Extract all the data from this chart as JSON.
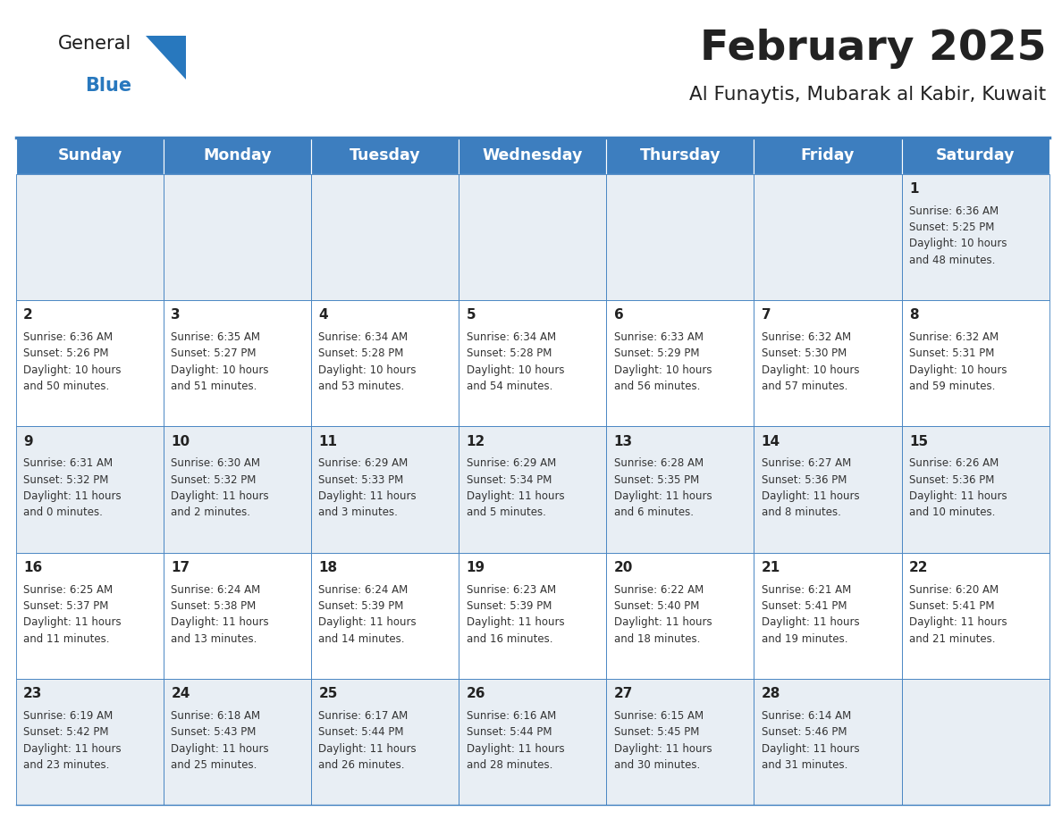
{
  "title": "February 2025",
  "subtitle": "Al Funaytis, Mubarak al Kabir, Kuwait",
  "header_bg": "#3d7ebf",
  "header_text_color": "#ffffff",
  "cell_bg_light": "#e8eef4",
  "cell_bg_white": "#ffffff",
  "border_color": "#3d7ebf",
  "border_color_thin": "#aac4de",
  "day_headers": [
    "Sunday",
    "Monday",
    "Tuesday",
    "Wednesday",
    "Thursday",
    "Friday",
    "Saturday"
  ],
  "days_data": [
    {
      "day": 1,
      "col": 6,
      "row": 0,
      "sunrise": "6:36 AM",
      "sunset": "5:25 PM",
      "daylight_a": "Daylight: 10 hours",
      "daylight_b": "and 48 minutes."
    },
    {
      "day": 2,
      "col": 0,
      "row": 1,
      "sunrise": "6:36 AM",
      "sunset": "5:26 PM",
      "daylight_a": "Daylight: 10 hours",
      "daylight_b": "and 50 minutes."
    },
    {
      "day": 3,
      "col": 1,
      "row": 1,
      "sunrise": "6:35 AM",
      "sunset": "5:27 PM",
      "daylight_a": "Daylight: 10 hours",
      "daylight_b": "and 51 minutes."
    },
    {
      "day": 4,
      "col": 2,
      "row": 1,
      "sunrise": "6:34 AM",
      "sunset": "5:28 PM",
      "daylight_a": "Daylight: 10 hours",
      "daylight_b": "and 53 minutes."
    },
    {
      "day": 5,
      "col": 3,
      "row": 1,
      "sunrise": "6:34 AM",
      "sunset": "5:28 PM",
      "daylight_a": "Daylight: 10 hours",
      "daylight_b": "and 54 minutes."
    },
    {
      "day": 6,
      "col": 4,
      "row": 1,
      "sunrise": "6:33 AM",
      "sunset": "5:29 PM",
      "daylight_a": "Daylight: 10 hours",
      "daylight_b": "and 56 minutes."
    },
    {
      "day": 7,
      "col": 5,
      "row": 1,
      "sunrise": "6:32 AM",
      "sunset": "5:30 PM",
      "daylight_a": "Daylight: 10 hours",
      "daylight_b": "and 57 minutes."
    },
    {
      "day": 8,
      "col": 6,
      "row": 1,
      "sunrise": "6:32 AM",
      "sunset": "5:31 PM",
      "daylight_a": "Daylight: 10 hours",
      "daylight_b": "and 59 minutes."
    },
    {
      "day": 9,
      "col": 0,
      "row": 2,
      "sunrise": "6:31 AM",
      "sunset": "5:32 PM",
      "daylight_a": "Daylight: 11 hours",
      "daylight_b": "and 0 minutes."
    },
    {
      "day": 10,
      "col": 1,
      "row": 2,
      "sunrise": "6:30 AM",
      "sunset": "5:32 PM",
      "daylight_a": "Daylight: 11 hours",
      "daylight_b": "and 2 minutes."
    },
    {
      "day": 11,
      "col": 2,
      "row": 2,
      "sunrise": "6:29 AM",
      "sunset": "5:33 PM",
      "daylight_a": "Daylight: 11 hours",
      "daylight_b": "and 3 minutes."
    },
    {
      "day": 12,
      "col": 3,
      "row": 2,
      "sunrise": "6:29 AM",
      "sunset": "5:34 PM",
      "daylight_a": "Daylight: 11 hours",
      "daylight_b": "and 5 minutes."
    },
    {
      "day": 13,
      "col": 4,
      "row": 2,
      "sunrise": "6:28 AM",
      "sunset": "5:35 PM",
      "daylight_a": "Daylight: 11 hours",
      "daylight_b": "and 6 minutes."
    },
    {
      "day": 14,
      "col": 5,
      "row": 2,
      "sunrise": "6:27 AM",
      "sunset": "5:36 PM",
      "daylight_a": "Daylight: 11 hours",
      "daylight_b": "and 8 minutes."
    },
    {
      "day": 15,
      "col": 6,
      "row": 2,
      "sunrise": "6:26 AM",
      "sunset": "5:36 PM",
      "daylight_a": "Daylight: 11 hours",
      "daylight_b": "and 10 minutes."
    },
    {
      "day": 16,
      "col": 0,
      "row": 3,
      "sunrise": "6:25 AM",
      "sunset": "5:37 PM",
      "daylight_a": "Daylight: 11 hours",
      "daylight_b": "and 11 minutes."
    },
    {
      "day": 17,
      "col": 1,
      "row": 3,
      "sunrise": "6:24 AM",
      "sunset": "5:38 PM",
      "daylight_a": "Daylight: 11 hours",
      "daylight_b": "and 13 minutes."
    },
    {
      "day": 18,
      "col": 2,
      "row": 3,
      "sunrise": "6:24 AM",
      "sunset": "5:39 PM",
      "daylight_a": "Daylight: 11 hours",
      "daylight_b": "and 14 minutes."
    },
    {
      "day": 19,
      "col": 3,
      "row": 3,
      "sunrise": "6:23 AM",
      "sunset": "5:39 PM",
      "daylight_a": "Daylight: 11 hours",
      "daylight_b": "and 16 minutes."
    },
    {
      "day": 20,
      "col": 4,
      "row": 3,
      "sunrise": "6:22 AM",
      "sunset": "5:40 PM",
      "daylight_a": "Daylight: 11 hours",
      "daylight_b": "and 18 minutes."
    },
    {
      "day": 21,
      "col": 5,
      "row": 3,
      "sunrise": "6:21 AM",
      "sunset": "5:41 PM",
      "daylight_a": "Daylight: 11 hours",
      "daylight_b": "and 19 minutes."
    },
    {
      "day": 22,
      "col": 6,
      "row": 3,
      "sunrise": "6:20 AM",
      "sunset": "5:41 PM",
      "daylight_a": "Daylight: 11 hours",
      "daylight_b": "and 21 minutes."
    },
    {
      "day": 23,
      "col": 0,
      "row": 4,
      "sunrise": "6:19 AM",
      "sunset": "5:42 PM",
      "daylight_a": "Daylight: 11 hours",
      "daylight_b": "and 23 minutes."
    },
    {
      "day": 24,
      "col": 1,
      "row": 4,
      "sunrise": "6:18 AM",
      "sunset": "5:43 PM",
      "daylight_a": "Daylight: 11 hours",
      "daylight_b": "and 25 minutes."
    },
    {
      "day": 25,
      "col": 2,
      "row": 4,
      "sunrise": "6:17 AM",
      "sunset": "5:44 PM",
      "daylight_a": "Daylight: 11 hours",
      "daylight_b": "and 26 minutes."
    },
    {
      "day": 26,
      "col": 3,
      "row": 4,
      "sunrise": "6:16 AM",
      "sunset": "5:44 PM",
      "daylight_a": "Daylight: 11 hours",
      "daylight_b": "and 28 minutes."
    },
    {
      "day": 27,
      "col": 4,
      "row": 4,
      "sunrise": "6:15 AM",
      "sunset": "5:45 PM",
      "daylight_a": "Daylight: 11 hours",
      "daylight_b": "and 30 minutes."
    },
    {
      "day": 28,
      "col": 5,
      "row": 4,
      "sunrise": "6:14 AM",
      "sunset": "5:46 PM",
      "daylight_a": "Daylight: 11 hours",
      "daylight_b": "and 31 minutes."
    }
  ],
  "num_rows": 5,
  "num_cols": 7,
  "text_color": "#222222",
  "info_text_color": "#333333",
  "logo_triangle_color": "#2878be"
}
